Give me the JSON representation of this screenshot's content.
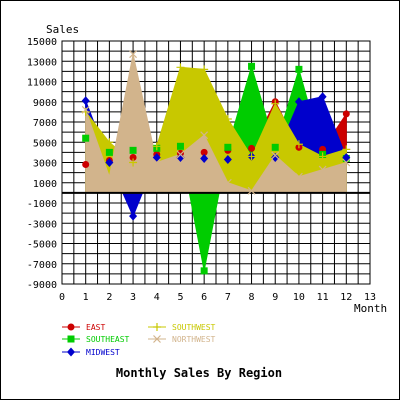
{
  "chart_data": {
    "type": "area",
    "title": "Monthly Sales By Region",
    "ylabel": "Sales",
    "xlabel": "Month",
    "xlim": [
      0,
      13
    ],
    "ylim": [
      -9000,
      15000
    ],
    "x_ticks": [
      0,
      1,
      2,
      3,
      4,
      5,
      6,
      7,
      8,
      9,
      10,
      11,
      12,
      13
    ],
    "y_ticks": [
      -9000,
      -7000,
      -5000,
      -3000,
      -1000,
      1000,
      3000,
      5000,
      7000,
      9000,
      11000,
      13000,
      15000
    ],
    "grid": true,
    "legend_position": "bottom-left",
    "x": [
      1,
      2,
      3,
      4,
      5,
      6,
      7,
      8,
      9,
      10,
      11,
      12
    ],
    "series": [
      {
        "name": "EAST",
        "color": "#cc0000",
        "marker": "circle",
        "values": [
          2800,
          3200,
          3500,
          3800,
          3900,
          4000,
          4200,
          4400,
          9000,
          4500,
          4300,
          7800
        ]
      },
      {
        "name": "SOUTHEAST",
        "color": "#00cc00",
        "marker": "square",
        "values": [
          5400,
          4000,
          4200,
          4400,
          4600,
          -7700,
          4500,
          12500,
          4500,
          12200,
          3800,
          3400
        ]
      },
      {
        "name": "MIDWEST",
        "color": "#0000cc",
        "marker": "diamond",
        "values": [
          9100,
          3000,
          -2300,
          3500,
          3500,
          3400,
          3300,
          3600,
          3500,
          9000,
          9500,
          3500
        ]
      },
      {
        "name": "SOUTHWEST",
        "color": "#c8c800",
        "marker": "plus",
        "values": [
          8000,
          5000,
          3000,
          4600,
          12400,
          12200,
          7300,
          3600,
          8800,
          4800,
          3600,
          4300
        ]
      },
      {
        "name": "NORTHWEST",
        "color": "#d2b48c",
        "marker": "cross",
        "values": [
          8200,
          1600,
          13700,
          3000,
          3800,
          5700,
          1000,
          200,
          3700,
          1600,
          2300,
          3000
        ]
      }
    ]
  }
}
